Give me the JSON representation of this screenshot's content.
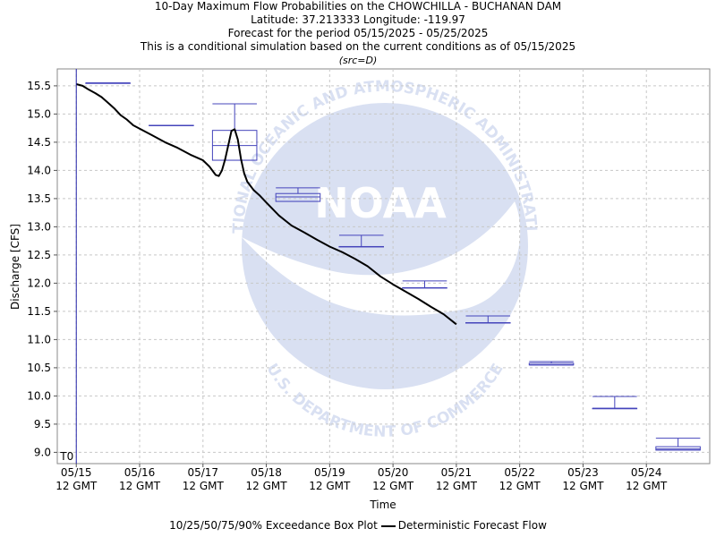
{
  "titles": {
    "line1": "10-Day Maximum Flow Probabilities on the CHOWCHILLA - BUCHANAN DAM",
    "line2": "Latitude: 37.213333 Longitude: -119.97",
    "line3": "Forecast for the period 05/15/2025 - 05/25/2025",
    "line4": "This is a conditional simulation based on the current conditions as of 05/15/2025",
    "line5": "(src=D)"
  },
  "watermark": {
    "logo_text": "NOAA",
    "arc_top": "NATIONAL OCEANIC AND ATMOSPHERIC ADMINISTRATION",
    "arc_bottom": "U.S. DEPARTMENT OF COMMERCE"
  },
  "legend": {
    "box_label": "10/25/50/75/90% Exceedance Box Plot",
    "line_label": "Deterministic Forecast Flow"
  },
  "chart_data": {
    "type": "line",
    "title": "10-Day Maximum Flow Probabilities on the CHOWCHILLA - BUCHANAN DAM",
    "xlabel": "Time",
    "ylabel": "Discharge [CFS]",
    "ylim": [
      8.8,
      15.8
    ],
    "xlim": [
      -0.3,
      10.0
    ],
    "grid": true,
    "t0_label": "T0",
    "t0_x": 0,
    "x_ticks": [
      {
        "x": 0,
        "line1": "05/15",
        "line2": "12 GMT"
      },
      {
        "x": 1,
        "line1": "05/16",
        "line2": "12 GMT"
      },
      {
        "x": 2,
        "line1": "05/17",
        "line2": "12 GMT"
      },
      {
        "x": 3,
        "line1": "05/18",
        "line2": "12 GMT"
      },
      {
        "x": 4,
        "line1": "05/19",
        "line2": "12 GMT"
      },
      {
        "x": 5,
        "line1": "05/20",
        "line2": "12 GMT"
      },
      {
        "x": 6,
        "line1": "05/21",
        "line2": "12 GMT"
      },
      {
        "x": 7,
        "line1": "05/22",
        "line2": "12 GMT"
      },
      {
        "x": 8,
        "line1": "05/23",
        "line2": "12 GMT"
      },
      {
        "x": 9,
        "line1": "05/24",
        "line2": "12 GMT"
      }
    ],
    "y_ticks": [
      "9.0",
      "9.5",
      "10.0",
      "10.5",
      "11.0",
      "11.5",
      "12.0",
      "12.5",
      "13.0",
      "13.5",
      "14.0",
      "14.5",
      "15.0",
      "15.5"
    ],
    "series": [
      {
        "name": "Deterministic Forecast Flow",
        "color": "#000000",
        "x": [
          0,
          0.1,
          0.2,
          0.3,
          0.4,
          0.5,
          0.6,
          0.7,
          0.8,
          0.9,
          1.0,
          1.2,
          1.4,
          1.6,
          1.8,
          2.0,
          2.1,
          2.2,
          2.25,
          2.3,
          2.35,
          2.4,
          2.45,
          2.5,
          2.55,
          2.6,
          2.65,
          2.7,
          2.8,
          2.9,
          3.0,
          3.2,
          3.4,
          3.6,
          3.8,
          4.0,
          4.2,
          4.4,
          4.6,
          4.8,
          5.0,
          5.2,
          5.4,
          5.6,
          5.8,
          6.0
        ],
        "values": [
          15.53,
          15.5,
          15.43,
          15.37,
          15.3,
          15.2,
          15.1,
          14.98,
          14.9,
          14.8,
          14.74,
          14.62,
          14.5,
          14.4,
          14.28,
          14.18,
          14.07,
          13.92,
          13.9,
          14.0,
          14.2,
          14.45,
          14.7,
          14.73,
          14.55,
          14.2,
          13.95,
          13.8,
          13.65,
          13.55,
          13.43,
          13.2,
          13.02,
          12.9,
          12.77,
          12.65,
          12.55,
          12.43,
          12.3,
          12.12,
          11.98,
          11.85,
          11.72,
          11.58,
          11.45,
          11.27
        ]
      }
    ],
    "boxplots": [
      {
        "day": 0,
        "p10": 15.55,
        "p25": 15.55,
        "p50": 15.55,
        "p75": 15.55,
        "p90": 15.55
      },
      {
        "day": 1,
        "p10": 14.8,
        "p25": 14.8,
        "p50": 14.8,
        "p75": 14.8,
        "p90": 14.8
      },
      {
        "day": 2,
        "p10": 14.18,
        "p25": 14.18,
        "p50": 14.44,
        "p75": 14.71,
        "p90": 15.18
      },
      {
        "day": 3,
        "p10": 13.45,
        "p25": 13.45,
        "p50": 13.53,
        "p75": 13.59,
        "p90": 13.69
      },
      {
        "day": 4,
        "p10": 12.65,
        "p25": 12.65,
        "p50": 12.65,
        "p75": 12.65,
        "p90": 12.85
      },
      {
        "day": 5,
        "p10": 11.92,
        "p25": 11.92,
        "p50": 11.92,
        "p75": 11.92,
        "p90": 12.04
      },
      {
        "day": 6,
        "p10": 11.3,
        "p25": 11.3,
        "p50": 11.3,
        "p75": 11.3,
        "p90": 11.42
      },
      {
        "day": 7,
        "p10": 10.55,
        "p25": 10.55,
        "p50": 10.55,
        "p75": 10.58,
        "p90": 10.61
      },
      {
        "day": 8,
        "p10": 9.78,
        "p25": 9.78,
        "p50": 9.78,
        "p75": 9.78,
        "p90": 9.99
      },
      {
        "day": 9,
        "p10": 9.04,
        "p25": 9.04,
        "p50": 9.06,
        "p75": 9.1,
        "p90": 9.25
      }
    ],
    "box_color": "#4444bb",
    "t0_color": "#2222aa",
    "grid_color": "#c8c8c8"
  }
}
